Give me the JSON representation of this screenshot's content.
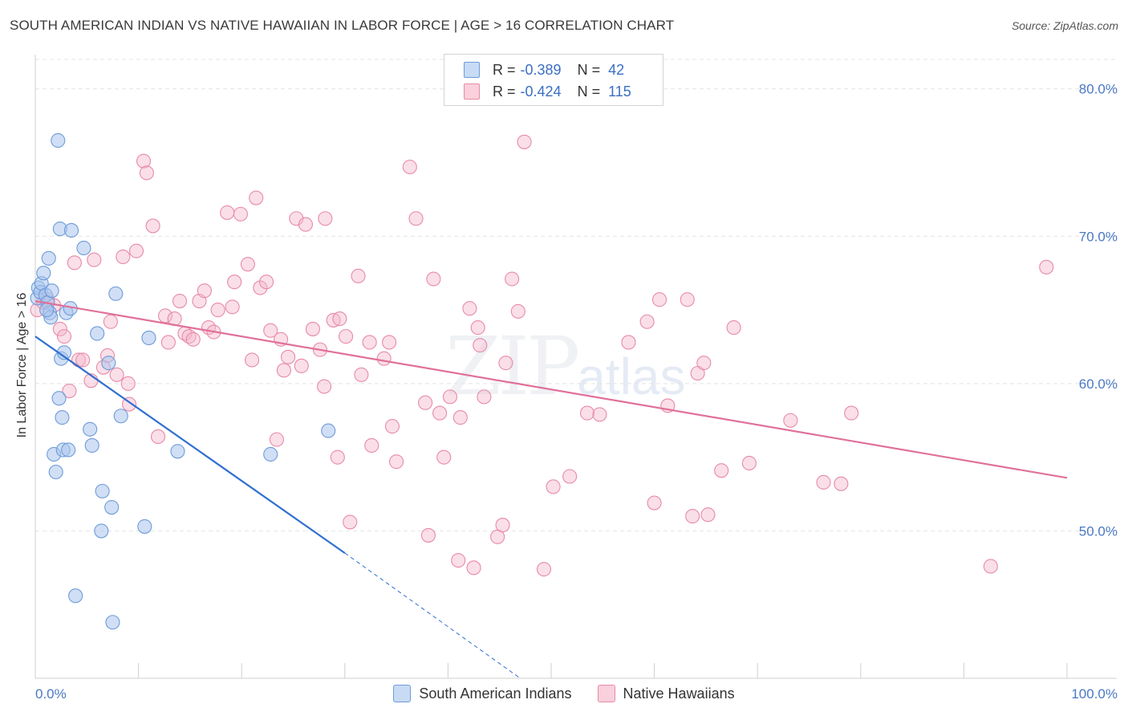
{
  "title": "SOUTH AMERICAN INDIAN VS NATIVE HAWAIIAN IN LABOR FORCE | AGE > 16 CORRELATION CHART",
  "source": "Source: ZipAtlas.com",
  "watermark": {
    "main": "ZIP",
    "sub": "atlas"
  },
  "legend_top": {
    "rows": [
      {
        "r_label": "R =",
        "r_value": "-0.389",
        "n_label": "N =",
        "n_value": "42"
      },
      {
        "r_label": "R =",
        "r_value": "-0.424",
        "n_label": "N =",
        "n_value": "115"
      }
    ]
  },
  "legend_bottom": [
    "South American Indians",
    "Native Hawaiians"
  ],
  "colors": {
    "blue_fill": "#a9c5ec",
    "blue_stroke": "#6e9bd9",
    "blue_line": "#2e6fd0",
    "pink_fill": "#f5b8cb",
    "pink_stroke": "#e88aa7",
    "pink_line": "#e0709a",
    "grid": "#e4e4e4",
    "tick_text": "#4a78c4"
  },
  "chart_data": {
    "type": "scatter",
    "title": "SOUTH AMERICAN INDIAN VS NATIVE HAWAIIAN IN LABOR FORCE | AGE > 16 CORRELATION CHART",
    "xlabel": "",
    "ylabel": "In Labor Force | Age > 16",
    "xlim": [
      0,
      100
    ],
    "ylim": [
      40.0,
      82.0
    ],
    "x_tick_labels": [
      "0.0%",
      "100.0%"
    ],
    "y_ticks": [
      50,
      60,
      70,
      80
    ],
    "y_tick_labels": [
      "50.0%",
      "60.0%",
      "70.0%",
      "80.0%"
    ],
    "grid": true,
    "legend_position": "top-center and bottom",
    "series": [
      {
        "name": "South American Indians",
        "r": -0.389,
        "n": 42,
        "trend": {
          "x": [
            0.0,
            30.0
          ],
          "y": [
            63.2,
            48.5
          ],
          "dashed_to": [
            47.0,
            40.0
          ]
        },
        "points": [
          [
            0.2,
            65.8
          ],
          [
            0.3,
            66.5
          ],
          [
            0.5,
            66.2
          ],
          [
            0.6,
            66.8
          ],
          [
            0.8,
            67.5
          ],
          [
            1.0,
            66.0
          ],
          [
            1.2,
            65.5
          ],
          [
            1.3,
            68.5
          ],
          [
            1.4,
            64.8
          ],
          [
            1.5,
            64.5
          ],
          [
            1.6,
            66.3
          ],
          [
            1.8,
            55.2
          ],
          [
            2.0,
            54.0
          ],
          [
            2.2,
            76.5
          ],
          [
            2.3,
            59.0
          ],
          [
            2.4,
            70.5
          ],
          [
            2.5,
            61.7
          ],
          [
            2.6,
            57.7
          ],
          [
            2.7,
            55.5
          ],
          [
            2.8,
            62.1
          ],
          [
            3.0,
            64.8
          ],
          [
            3.2,
            55.5
          ],
          [
            3.4,
            65.1
          ],
          [
            3.5,
            70.4
          ],
          [
            3.9,
            45.6
          ],
          [
            4.7,
            69.2
          ],
          [
            5.3,
            56.9
          ],
          [
            5.5,
            55.8
          ],
          [
            6.0,
            63.4
          ],
          [
            6.4,
            50.0
          ],
          [
            6.5,
            52.7
          ],
          [
            7.1,
            61.4
          ],
          [
            7.4,
            51.6
          ],
          [
            7.5,
            43.8
          ],
          [
            7.8,
            66.1
          ],
          [
            8.3,
            57.8
          ],
          [
            10.6,
            50.3
          ],
          [
            11.0,
            63.1
          ],
          [
            13.8,
            55.4
          ],
          [
            22.8,
            55.2
          ],
          [
            28.4,
            56.8
          ],
          [
            1.1,
            65.0
          ]
        ]
      },
      {
        "name": "Native Hawaiians",
        "r": -0.424,
        "n": 115,
        "trend": {
          "x": [
            0.0,
            100.0
          ],
          "y": [
            65.6,
            53.6
          ]
        },
        "points": [
          [
            0.2,
            65.0
          ],
          [
            0.8,
            65.5
          ],
          [
            1.2,
            65.7
          ],
          [
            1.8,
            65.3
          ],
          [
            2.4,
            63.7
          ],
          [
            2.8,
            63.2
          ],
          [
            3.3,
            59.5
          ],
          [
            3.8,
            68.2
          ],
          [
            4.2,
            61.6
          ],
          [
            4.6,
            61.6
          ],
          [
            5.4,
            60.2
          ],
          [
            5.7,
            68.4
          ],
          [
            6.6,
            61.1
          ],
          [
            7.0,
            61.9
          ],
          [
            7.3,
            64.2
          ],
          [
            7.9,
            60.6
          ],
          [
            8.5,
            68.6
          ],
          [
            9.0,
            60.0
          ],
          [
            9.1,
            58.6
          ],
          [
            9.8,
            69.0
          ],
          [
            10.5,
            75.1
          ],
          [
            10.8,
            74.3
          ],
          [
            11.4,
            70.7
          ],
          [
            11.9,
            56.4
          ],
          [
            12.6,
            64.6
          ],
          [
            12.9,
            62.8
          ],
          [
            13.5,
            64.4
          ],
          [
            14.0,
            65.6
          ],
          [
            14.5,
            63.4
          ],
          [
            14.9,
            63.2
          ],
          [
            15.3,
            63.0
          ],
          [
            15.9,
            65.6
          ],
          [
            16.4,
            66.3
          ],
          [
            16.8,
            63.8
          ],
          [
            17.3,
            63.5
          ],
          [
            17.7,
            65.0
          ],
          [
            18.6,
            71.6
          ],
          [
            19.1,
            65.2
          ],
          [
            19.3,
            66.9
          ],
          [
            19.9,
            71.5
          ],
          [
            20.6,
            68.1
          ],
          [
            21.0,
            61.6
          ],
          [
            21.4,
            72.6
          ],
          [
            21.8,
            66.5
          ],
          [
            22.4,
            66.9
          ],
          [
            22.8,
            63.6
          ],
          [
            23.4,
            56.2
          ],
          [
            23.8,
            63.0
          ],
          [
            24.1,
            60.9
          ],
          [
            24.5,
            61.8
          ],
          [
            25.3,
            71.2
          ],
          [
            25.8,
            61.2
          ],
          [
            26.2,
            70.8
          ],
          [
            26.9,
            63.7
          ],
          [
            27.6,
            62.3
          ],
          [
            28.0,
            59.8
          ],
          [
            28.1,
            71.2
          ],
          [
            28.9,
            64.3
          ],
          [
            29.3,
            55.0
          ],
          [
            29.5,
            64.4
          ],
          [
            30.1,
            63.2
          ],
          [
            30.5,
            50.6
          ],
          [
            31.3,
            67.3
          ],
          [
            31.6,
            60.6
          ],
          [
            32.4,
            62.8
          ],
          [
            32.6,
            55.8
          ],
          [
            33.8,
            61.7
          ],
          [
            34.3,
            62.8
          ],
          [
            34.6,
            57.1
          ],
          [
            35.0,
            54.7
          ],
          [
            36.3,
            74.7
          ],
          [
            36.9,
            71.2
          ],
          [
            37.8,
            58.7
          ],
          [
            38.1,
            49.7
          ],
          [
            38.6,
            67.1
          ],
          [
            39.2,
            58.0
          ],
          [
            39.6,
            55.0
          ],
          [
            40.2,
            59.1
          ],
          [
            41.0,
            48.0
          ],
          [
            41.2,
            57.7
          ],
          [
            42.1,
            65.1
          ],
          [
            42.5,
            47.5
          ],
          [
            42.9,
            63.8
          ],
          [
            43.1,
            62.6
          ],
          [
            43.5,
            59.1
          ],
          [
            44.8,
            49.6
          ],
          [
            45.3,
            50.4
          ],
          [
            45.6,
            61.4
          ],
          [
            46.2,
            67.1
          ],
          [
            46.8,
            64.9
          ],
          [
            47.4,
            76.4
          ],
          [
            49.3,
            47.4
          ],
          [
            50.2,
            53.0
          ],
          [
            51.8,
            53.7
          ],
          [
            53.5,
            58.0
          ],
          [
            54.7,
            57.9
          ],
          [
            57.5,
            62.8
          ],
          [
            59.3,
            64.2
          ],
          [
            60.0,
            51.9
          ],
          [
            60.5,
            65.7
          ],
          [
            61.3,
            58.5
          ],
          [
            63.2,
            65.7
          ],
          [
            63.7,
            51.0
          ],
          [
            64.2,
            60.7
          ],
          [
            64.8,
            61.4
          ],
          [
            65.2,
            51.1
          ],
          [
            66.5,
            54.1
          ],
          [
            67.7,
            63.8
          ],
          [
            69.2,
            54.6
          ],
          [
            73.2,
            57.5
          ],
          [
            76.4,
            53.3
          ],
          [
            78.1,
            53.2
          ],
          [
            79.1,
            58.0
          ],
          [
            92.6,
            47.6
          ],
          [
            98.0,
            67.9
          ]
        ]
      }
    ]
  }
}
